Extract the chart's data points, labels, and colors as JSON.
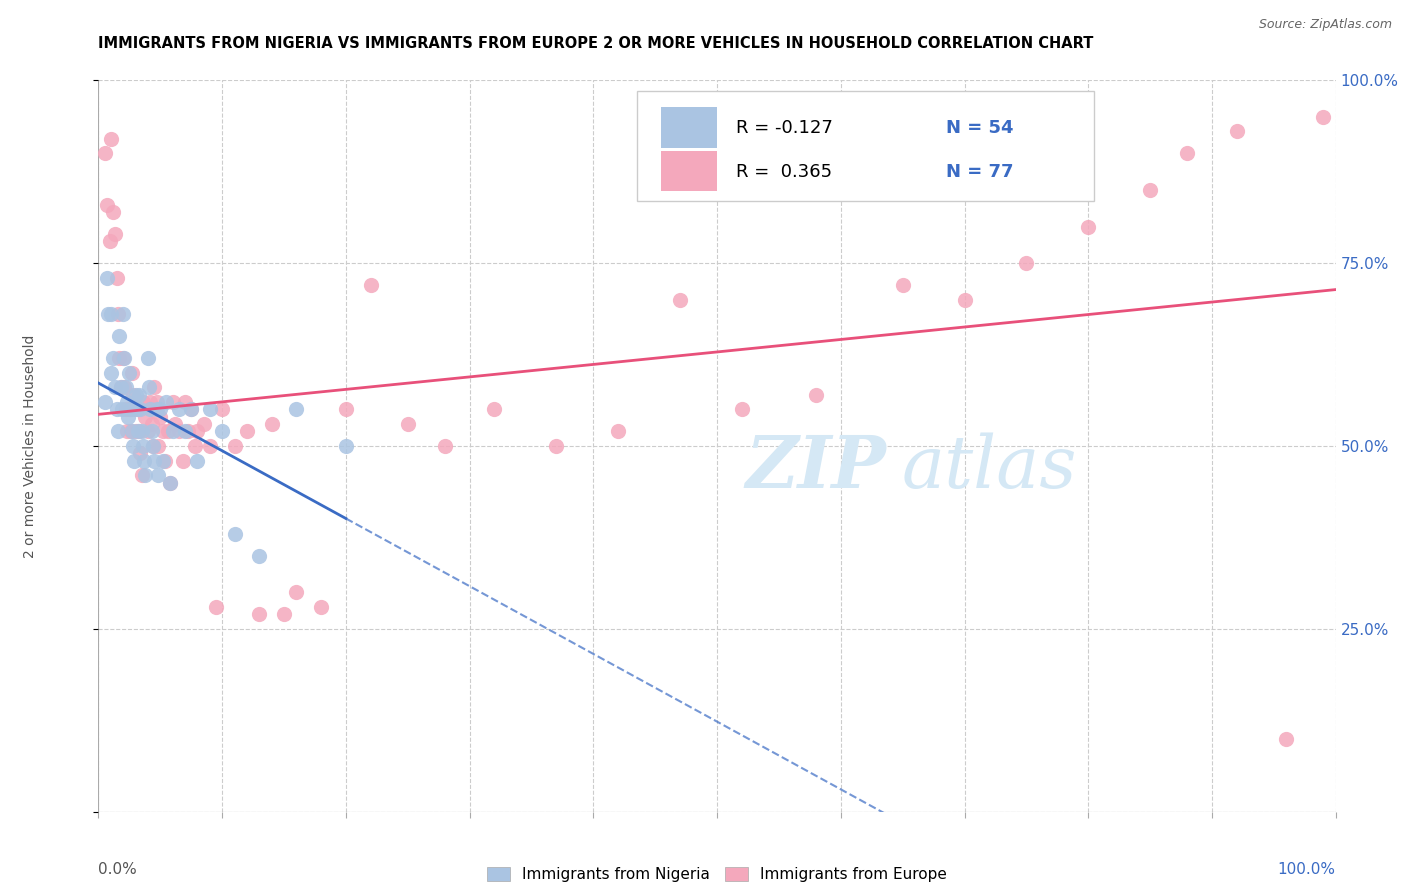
{
  "title": "IMMIGRANTS FROM NIGERIA VS IMMIGRANTS FROM EUROPE 2 OR MORE VEHICLES IN HOUSEHOLD CORRELATION CHART",
  "source": "Source: ZipAtlas.com",
  "ylabel": "2 or more Vehicles in Household",
  "legend_nigeria": "Immigrants from Nigeria",
  "legend_europe": "Immigrants from Europe",
  "r_nigeria": "-0.127",
  "n_nigeria": "54",
  "r_europe": "0.365",
  "n_europe": "77",
  "nigeria_color": "#aac4e2",
  "europe_color": "#f4a8bc",
  "nigeria_line_color": "#3a6bc4",
  "europe_line_color": "#e8507a",
  "watermark_color": "#d5e8f5",
  "ytick_labels": [
    "",
    "25.0%",
    "50.0%",
    "75.0%",
    "100.0%"
  ],
  "ytick_values": [
    0.0,
    0.25,
    0.5,
    0.75,
    1.0
  ],
  "right_ytick_labels": [
    "100.0%",
    "75.0%",
    "50.0%",
    "25.0%",
    ""
  ],
  "right_ytick_values": [
    1.0,
    0.75,
    0.5,
    0.25,
    0.0
  ],
  "xlim": [
    0,
    1
  ],
  "ylim": [
    0,
    1
  ],
  "nigeria_points_x": [
    0.005,
    0.007,
    0.008,
    0.01,
    0.01,
    0.012,
    0.013,
    0.015,
    0.016,
    0.017,
    0.018,
    0.019,
    0.02,
    0.021,
    0.022,
    0.023,
    0.024,
    0.025,
    0.026,
    0.027,
    0.028,
    0.029,
    0.03,
    0.031,
    0.032,
    0.033,
    0.034,
    0.035,
    0.036,
    0.037,
    0.038,
    0.04,
    0.041,
    0.042,
    0.043,
    0.044,
    0.045,
    0.047,
    0.048,
    0.05,
    0.052,
    0.055,
    0.058,
    0.06,
    0.065,
    0.07,
    0.075,
    0.08,
    0.09,
    0.1,
    0.11,
    0.13,
    0.16,
    0.2
  ],
  "nigeria_points_y": [
    0.56,
    0.73,
    0.68,
    0.68,
    0.6,
    0.62,
    0.58,
    0.55,
    0.52,
    0.65,
    0.58,
    0.55,
    0.68,
    0.62,
    0.58,
    0.56,
    0.54,
    0.6,
    0.55,
    0.52,
    0.5,
    0.48,
    0.57,
    0.55,
    0.52,
    0.57,
    0.55,
    0.52,
    0.5,
    0.48,
    0.46,
    0.62,
    0.58,
    0.55,
    0.52,
    0.5,
    0.48,
    0.55,
    0.46,
    0.55,
    0.48,
    0.56,
    0.45,
    0.52,
    0.55,
    0.52,
    0.55,
    0.48,
    0.55,
    0.52,
    0.38,
    0.35,
    0.55,
    0.5
  ],
  "europe_points_x": [
    0.005,
    0.007,
    0.009,
    0.01,
    0.012,
    0.013,
    0.015,
    0.016,
    0.017,
    0.018,
    0.02,
    0.021,
    0.022,
    0.023,
    0.025,
    0.026,
    0.027,
    0.028,
    0.029,
    0.03,
    0.032,
    0.033,
    0.034,
    0.035,
    0.036,
    0.038,
    0.04,
    0.042,
    0.043,
    0.044,
    0.045,
    0.047,
    0.048,
    0.05,
    0.052,
    0.054,
    0.056,
    0.058,
    0.06,
    0.062,
    0.065,
    0.068,
    0.07,
    0.072,
    0.075,
    0.078,
    0.08,
    0.085,
    0.09,
    0.095,
    0.1,
    0.11,
    0.12,
    0.13,
    0.14,
    0.15,
    0.16,
    0.18,
    0.2,
    0.22,
    0.25,
    0.28,
    0.32,
    0.37,
    0.42,
    0.47,
    0.52,
    0.58,
    0.65,
    0.7,
    0.75,
    0.8,
    0.85,
    0.88,
    0.92,
    0.96,
    0.99
  ],
  "europe_points_y": [
    0.9,
    0.83,
    0.78,
    0.92,
    0.82,
    0.79,
    0.73,
    0.68,
    0.62,
    0.58,
    0.62,
    0.58,
    0.55,
    0.52,
    0.55,
    0.52,
    0.6,
    0.57,
    0.55,
    0.52,
    0.55,
    0.52,
    0.49,
    0.46,
    0.56,
    0.54,
    0.52,
    0.56,
    0.53,
    0.5,
    0.58,
    0.56,
    0.5,
    0.54,
    0.52,
    0.48,
    0.52,
    0.45,
    0.56,
    0.53,
    0.52,
    0.48,
    0.56,
    0.52,
    0.55,
    0.5,
    0.52,
    0.53,
    0.5,
    0.28,
    0.55,
    0.5,
    0.52,
    0.27,
    0.53,
    0.27,
    0.3,
    0.28,
    0.55,
    0.72,
    0.53,
    0.5,
    0.55,
    0.5,
    0.52,
    0.7,
    0.55,
    0.57,
    0.72,
    0.7,
    0.75,
    0.8,
    0.85,
    0.9,
    0.93,
    0.1,
    0.95
  ]
}
